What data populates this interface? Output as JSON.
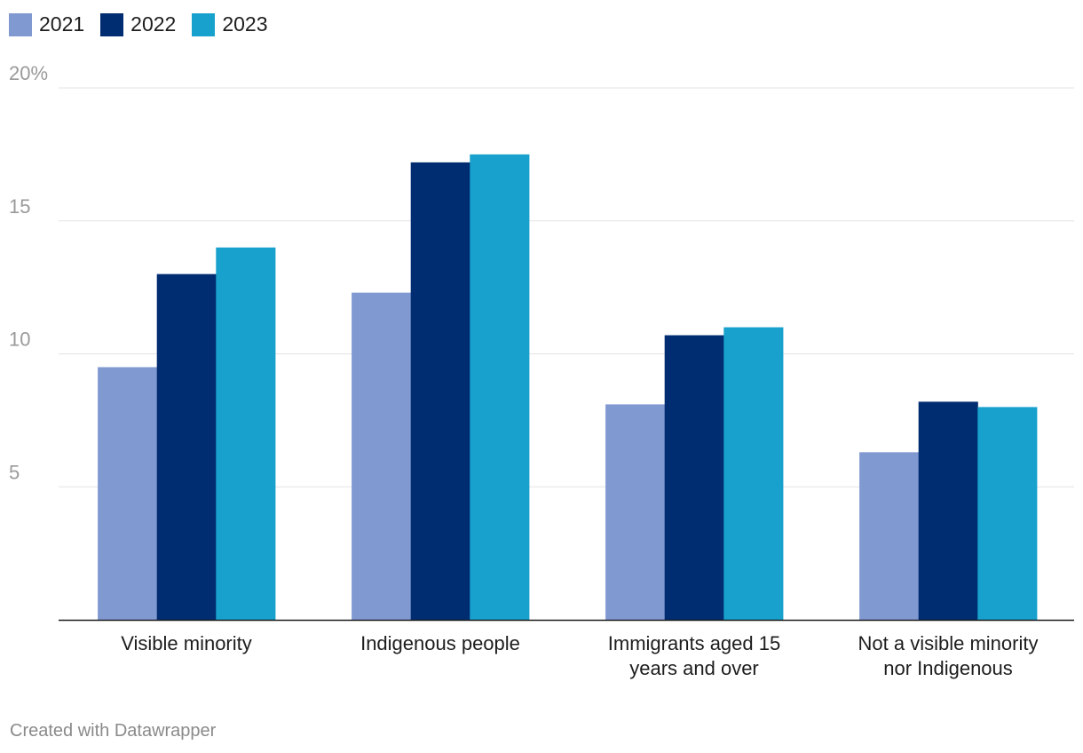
{
  "chart_data": {
    "type": "bar",
    "title": "",
    "xlabel": "",
    "ylabel": "",
    "ylim": [
      0,
      20
    ],
    "y_ticks": [
      {
        "value": 5,
        "label": "5"
      },
      {
        "value": 10,
        "label": "10"
      },
      {
        "value": 15,
        "label": "15"
      },
      {
        "value": 20,
        "label": "20%"
      }
    ],
    "categories": [
      "Visible minority",
      "Indigenous people",
      "Immigrants aged 15 years and over",
      "Not a visible minority nor Indigenous"
    ],
    "category_lines": [
      [
        "Visible minority"
      ],
      [
        "Indigenous people"
      ],
      [
        "Immigrants aged 15",
        "years and over"
      ],
      [
        "Not a visible minority",
        "nor Indigenous"
      ]
    ],
    "series": [
      {
        "name": "2021",
        "color": "#8199d1",
        "values": [
          9.5,
          12.3,
          8.1,
          6.3
        ]
      },
      {
        "name": "2022",
        "color": "#002c71",
        "values": [
          13.0,
          17.2,
          10.7,
          8.2
        ]
      },
      {
        "name": "2023",
        "color": "#18a1cd",
        "values": [
          14.0,
          17.5,
          11.0,
          8.0
        ]
      }
    ],
    "grid": true,
    "legend": "top-left"
  },
  "footer": {
    "credit": "Created with Datawrapper"
  }
}
